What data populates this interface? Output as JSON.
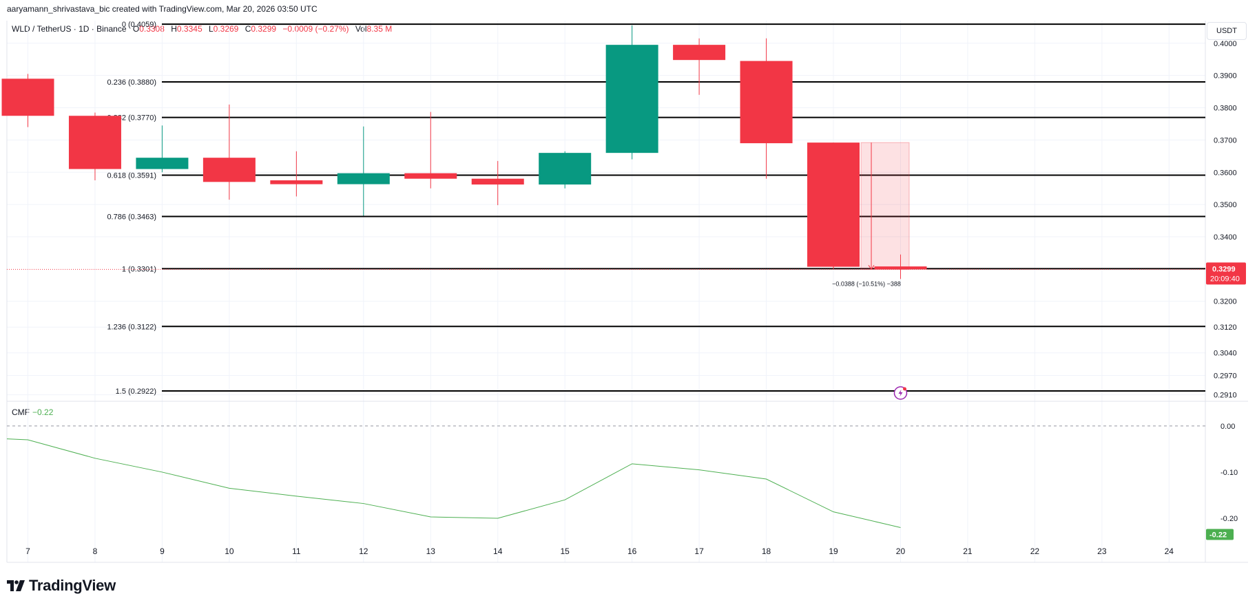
{
  "attribution": "aaryamann_shrivastava_bic created with TradingView.com, Mar 20, 2026 03:50 UTC",
  "header": {
    "symbol": "WLD / TetherUS · 1D · Binance",
    "o_label": "O",
    "o_value": "0.3308",
    "h_label": "H",
    "h_value": "0.3345",
    "l_label": "L",
    "l_value": "0.3269",
    "c_label": "C",
    "c_value": "0.3299",
    "change": "−0.0009 (−0.27%)",
    "vol_label": "Vol",
    "vol_value": "8.35 M"
  },
  "currency_button": "USDT",
  "cmf_legend": {
    "label": "CMF",
    "value": "−0.22"
  },
  "brand": "TradingView",
  "colors": {
    "up": "#089981",
    "down": "#f23645",
    "cmf": "#4caf50",
    "grid": "#f0f3fa"
  },
  "chart_data": [
    {
      "type": "candlestick",
      "title": "WLD / TetherUS · 1D · Binance",
      "x": [
        "7",
        "8",
        "9",
        "10",
        "11",
        "12",
        "13",
        "14",
        "15",
        "16",
        "17",
        "18",
        "19",
        "20"
      ],
      "x_axis_ticks": [
        "7",
        "8",
        "9",
        "10",
        "11",
        "12",
        "13",
        "14",
        "15",
        "16",
        "17",
        "18",
        "19",
        "20",
        "21",
        "22",
        "23",
        "24"
      ],
      "y_axis_ticks": [
        "0.4000",
        "0.3900",
        "0.3800",
        "0.3700",
        "0.3600",
        "0.3500",
        "0.3400",
        "0.3200",
        "0.3120",
        "0.3040",
        "0.2970",
        "0.2910"
      ],
      "y_range": [
        0.289,
        0.407
      ],
      "ohlc": [
        {
          "o": 0.389,
          "h": 0.3905,
          "l": 0.374,
          "c": 0.3775
        },
        {
          "o": 0.3775,
          "h": 0.3785,
          "l": 0.3575,
          "c": 0.361
        },
        {
          "o": 0.361,
          "h": 0.3745,
          "l": 0.36,
          "c": 0.3645
        },
        {
          "o": 0.3645,
          "h": 0.381,
          "l": 0.3515,
          "c": 0.357
        },
        {
          "o": 0.3575,
          "h": 0.3665,
          "l": 0.3525,
          "c": 0.3563
        },
        {
          "o": 0.3563,
          "h": 0.3742,
          "l": 0.3465,
          "c": 0.3597
        },
        {
          "o": 0.3597,
          "h": 0.3787,
          "l": 0.355,
          "c": 0.358
        },
        {
          "o": 0.358,
          "h": 0.3635,
          "l": 0.3498,
          "c": 0.3562
        },
        {
          "o": 0.3562,
          "h": 0.3665,
          "l": 0.355,
          "c": 0.366
        },
        {
          "o": 0.366,
          "h": 0.4055,
          "l": 0.364,
          "c": 0.3995
        },
        {
          "o": 0.3995,
          "h": 0.4015,
          "l": 0.384,
          "c": 0.3948
        },
        {
          "o": 0.3945,
          "h": 0.4015,
          "l": 0.358,
          "c": 0.369
        },
        {
          "o": 0.3692,
          "h": 0.3692,
          "l": 0.33,
          "c": 0.3307
        },
        {
          "o": 0.3308,
          "h": 0.3345,
          "l": 0.3269,
          "c": 0.3299
        }
      ],
      "last_price": "0.3299",
      "countdown": "20:09:40",
      "fibonacci": [
        {
          "label": "0 (0.4059)",
          "value": 0.4059
        },
        {
          "label": "0.236 (0.3880)",
          "value": 0.388
        },
        {
          "label": "0.382 (0.3770)",
          "value": 0.377
        },
        {
          "label": "0.618 (0.3591)",
          "value": 0.3591
        },
        {
          "label": "0.786 (0.3463)",
          "value": 0.3463
        },
        {
          "label": "1 (0.3301)",
          "value": 0.3301
        },
        {
          "label": "1.236 (0.3122)",
          "value": 0.3122
        },
        {
          "label": "1.5 (0.2922)",
          "value": 0.2922
        }
      ],
      "measure_label": "−0.0388 (−10.51%) −388"
    },
    {
      "type": "line",
      "title": "CMF",
      "x": [
        "7",
        "8",
        "9",
        "10",
        "11",
        "12",
        "13",
        "14",
        "15",
        "16",
        "17",
        "18",
        "19",
        "20"
      ],
      "series": [
        {
          "name": "CMF",
          "values": [
            -0.03,
            -0.07,
            -0.1,
            -0.135,
            -0.152,
            -0.168,
            -0.197,
            -0.2,
            -0.16,
            -0.082,
            -0.095,
            -0.115,
            -0.186,
            -0.22
          ]
        }
      ],
      "y_axis_ticks": [
        "0.00",
        "-0.10",
        "-0.20"
      ],
      "y_range": [
        -0.27,
        0.04
      ],
      "last_value": "-0.22"
    }
  ]
}
